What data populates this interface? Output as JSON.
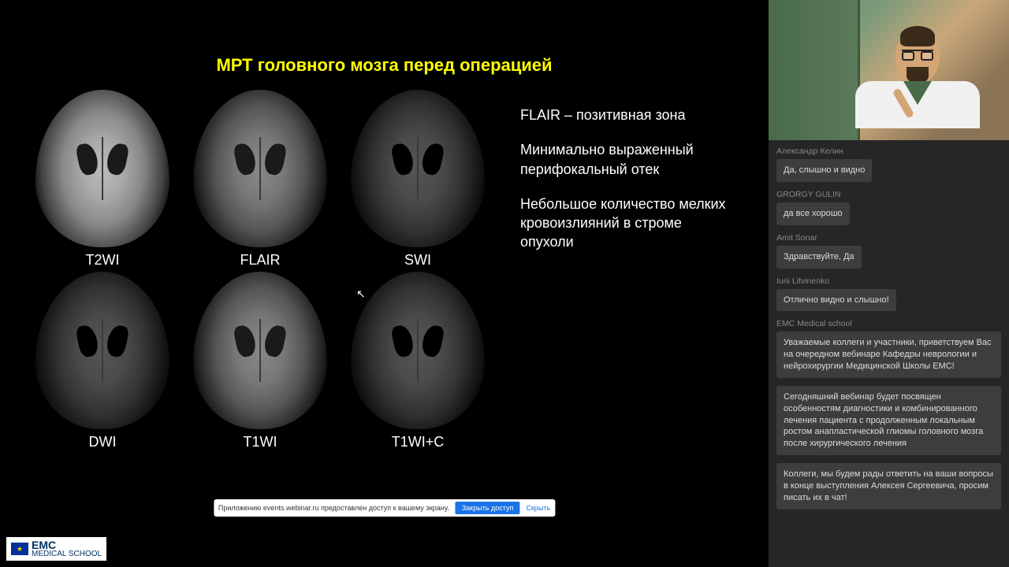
{
  "slide": {
    "title": "МРТ головного мозга перед операцией",
    "scans": {
      "row1": [
        {
          "label": "T2WI",
          "style": "light"
        },
        {
          "label": "FLAIR",
          "style": "normal"
        },
        {
          "label": "SWI",
          "style": "dark"
        }
      ],
      "row2": [
        {
          "label": "DWI",
          "style": "dark"
        },
        {
          "label": "T1WI",
          "style": "normal"
        },
        {
          "label": "T1WI+C",
          "style": "dark"
        }
      ]
    },
    "findings": [
      "FLAIR – позитивная зона",
      "Минимально выраженный перифокальный отек",
      "Небольшое количество мелких кровоизлияний в строме опухоли"
    ]
  },
  "notification": {
    "text": "Приложению events.webinar.ru предоставлен доступ к вашему экрану.",
    "primary": "Закрыть доступ",
    "secondary": "Скрыть"
  },
  "logo": {
    "brand": "EMC",
    "sub": "MEDICAL SCHOOL"
  },
  "chat": [
    {
      "author": "Александр Келин",
      "text": "Да, слышно и видно",
      "long": false
    },
    {
      "author": "GRORGY GULIN",
      "text": "да все хорошо",
      "long": false
    },
    {
      "author": "Amit Sonar",
      "text": "Здравствуйте, Да",
      "long": false
    },
    {
      "author": "Iurii Litvinenko",
      "text": "Отлично видно и слышно!",
      "long": false
    },
    {
      "author": "EMC Medical school",
      "text": "Уважаемые коллеги и участники, приветствуем Вас на очередном вебинаре Кафедры неврологии и нейрохирургии Медицинской Школы EMC!",
      "long": true
    },
    {
      "author": "",
      "text": "Сегодняшний вебинар будет посвящен особенностям диагностики и комбинированного лечения пациента с продолженным локальным ростом анапластической глиомы головного мозга после хирургического лечения",
      "long": true
    },
    {
      "author": "",
      "text": "Коллеги, мы будем рады ответить на ваши вопросы в конце выступления Алексея Сергеевича, просим писать их в чат!",
      "long": true
    }
  ],
  "colors": {
    "title": "#ffff00",
    "background": "#000000",
    "sidebar_bg": "#262626",
    "bubble_bg": "#3d3d3d",
    "author": "#888888",
    "notif_primary": "#1a73e8"
  }
}
